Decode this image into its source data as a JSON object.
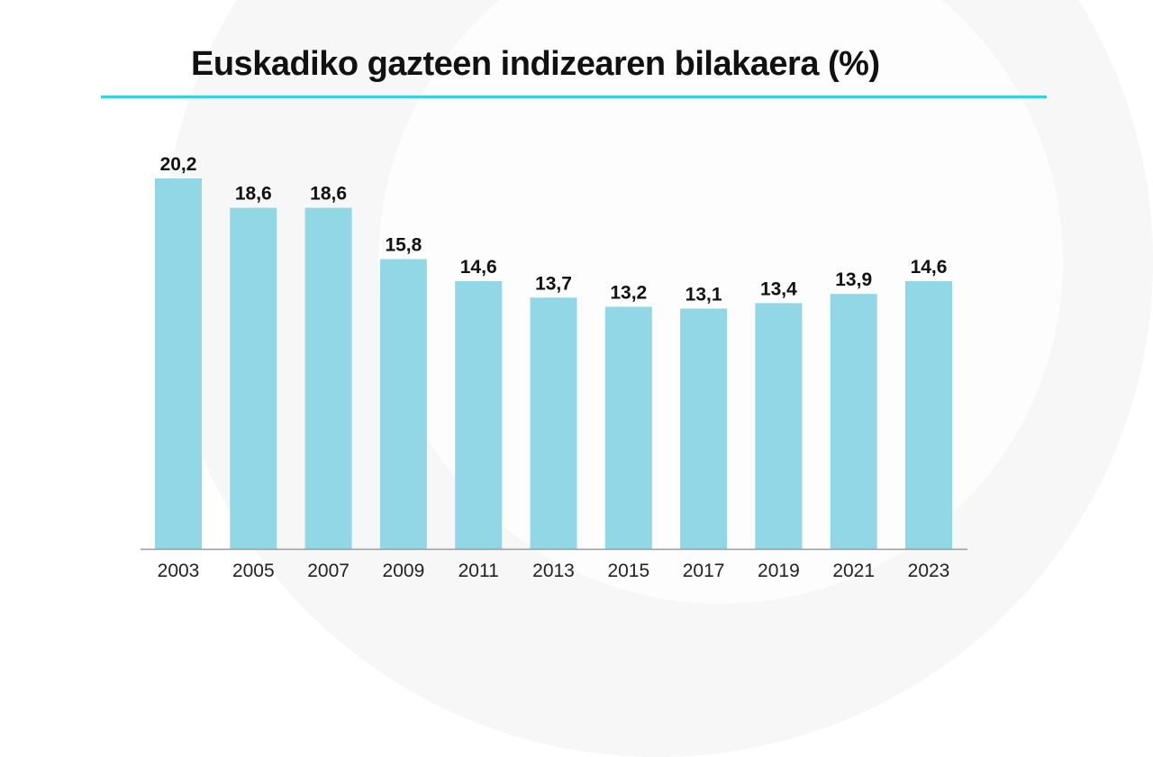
{
  "colors": {
    "bar": "#92d7e6",
    "accent": "#33d3e3",
    "axis": "#9a9a9a",
    "text": "#111111"
  },
  "chart_data": {
    "type": "bar",
    "title": "Euskadiko gazteen indizearen bilakaera (%)",
    "categories": [
      "2003",
      "2005",
      "2007",
      "2009",
      "2011",
      "2013",
      "2015",
      "2017",
      "2019",
      "2021",
      "2023"
    ],
    "values": [
      20.2,
      18.6,
      18.6,
      15.8,
      14.6,
      13.7,
      13.2,
      13.1,
      13.4,
      13.9,
      14.6
    ],
    "value_labels": [
      "20,2",
      "18,6",
      "18,6",
      "15,8",
      "14,6",
      "13,7",
      "13,2",
      "13,1",
      "13,4",
      "13,9",
      "14,6"
    ],
    "xlabel": "",
    "ylabel": "",
    "ylim": [
      0,
      20.2
    ],
    "grid": false,
    "legend": "none"
  }
}
